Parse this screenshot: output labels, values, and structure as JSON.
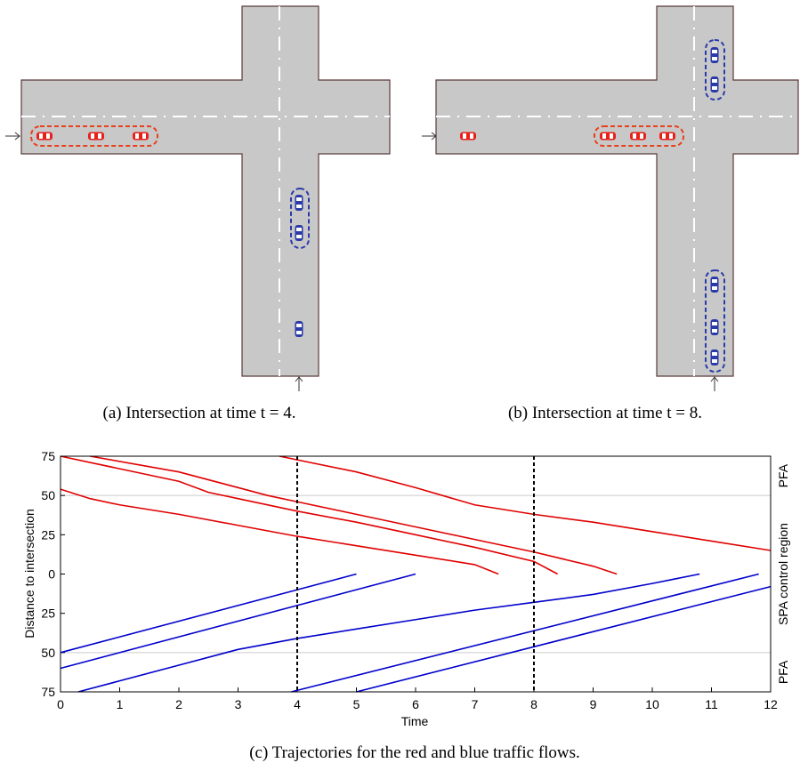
{
  "figure": {
    "panels": [
      {
        "caption": "(a) Intersection at time t = 4."
      },
      {
        "caption": "(b) Intersection at time t = 8."
      }
    ]
  },
  "chart_data": {
    "type": "line",
    "caption": "(c) Trajectories for the red and blue traffic flows.",
    "xlabel": "Time",
    "ylabel": "Distance to intersection",
    "xlim": [
      0,
      12
    ],
    "xticks": [
      0,
      1,
      2,
      3,
      4,
      5,
      6,
      7,
      8,
      9,
      10,
      11,
      12
    ],
    "ylim": [
      -75,
      75
    ],
    "yticks": [
      75,
      50,
      25,
      0,
      {
        "value": -25,
        "label": "25"
      },
      {
        "value": -50,
        "label": "50"
      },
      {
        "value": -75,
        "label": "75"
      }
    ],
    "hlines": [
      50,
      -50
    ],
    "vlines": [
      4,
      8
    ],
    "right_labels": [
      "PFA",
      "SPA control region",
      "PFA"
    ],
    "series": [
      {
        "color": "#e00000",
        "x": [
          0,
          0.5,
          1,
          2,
          3,
          4,
          5,
          6,
          7,
          7.4
        ],
        "y": [
          54,
          48,
          44,
          38,
          31,
          24,
          18,
          12,
          6,
          0
        ]
      },
      {
        "color": "#e00000",
        "x": [
          0,
          1,
          2,
          2.5,
          3,
          4,
          5,
          6,
          7,
          8,
          8.4
        ],
        "y": [
          75,
          67,
          59,
          52,
          48,
          40,
          33,
          25,
          17,
          8,
          0
        ]
      },
      {
        "color": "#e00000",
        "x": [
          0.5,
          2,
          3,
          3.5,
          4,
          5,
          6,
          7,
          8,
          9,
          9.4
        ],
        "y": [
          75,
          65,
          55,
          50,
          46,
          38,
          30,
          22,
          14,
          5,
          0
        ]
      },
      {
        "color": "#e00000",
        "x": [
          3.7,
          5,
          6,
          7,
          8,
          9,
          10,
          11,
          12
        ],
        "y": [
          75,
          65,
          55,
          44,
          38,
          33,
          27,
          21,
          15
        ]
      },
      {
        "color": "#0000cc",
        "x": [
          0,
          5
        ],
        "y": [
          -50,
          0
        ]
      },
      {
        "color": "#0000cc",
        "x": [
          0,
          6
        ],
        "y": [
          -60,
          0
        ]
      },
      {
        "color": "#0000cc",
        "x": [
          0.3,
          1,
          2,
          3,
          4,
          5,
          6,
          7,
          8,
          9,
          10,
          10.8
        ],
        "y": [
          -75,
          -68,
          -58,
          -48,
          -41,
          -35,
          -29,
          -23,
          -18,
          -13,
          -6,
          0
        ]
      },
      {
        "color": "#0000cc",
        "x": [
          3.9,
          11.8
        ],
        "y": [
          -75,
          0
        ]
      },
      {
        "color": "#0000cc",
        "x": [
          5,
          12
        ],
        "y": [
          -75,
          -8
        ]
      }
    ]
  }
}
